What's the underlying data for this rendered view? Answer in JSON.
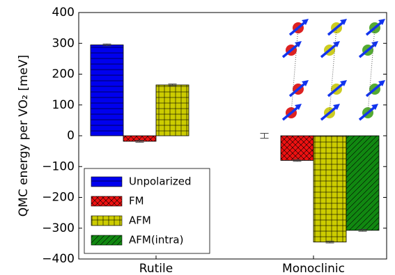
{
  "chart_data": {
    "type": "bar",
    "ylabel": "QMC energy per VO₂ [meV]",
    "categories": [
      "Rutile",
      "Monoclinic"
    ],
    "series": [
      {
        "name": "Unpolarized",
        "color": "#0000ee",
        "hatch": "-",
        "values": [
          295,
          0
        ],
        "errors": [
          3,
          8
        ]
      },
      {
        "name": "FM",
        "color": "#ee1111",
        "hatch": "x",
        "values": [
          -18,
          -80
        ],
        "errors": [
          3,
          3
        ]
      },
      {
        "name": "AFM",
        "color": "#cccc00",
        "hatch": "+",
        "values": [
          165,
          -345
        ],
        "errors": [
          3,
          3
        ]
      },
      {
        "name": "AFM(intra)",
        "color": "#118811",
        "hatch": "/",
        "values": [
          null,
          -307
        ],
        "errors": [
          null,
          3
        ]
      }
    ],
    "ylim": [
      -400,
      400
    ],
    "yticks": [
      {
        "value": -400,
        "label": "−400"
      },
      {
        "value": -300,
        "label": "−300"
      },
      {
        "value": -200,
        "label": "−200"
      },
      {
        "value": -100,
        "label": "−100"
      },
      0,
      100,
      200,
      300,
      400
    ],
    "legend": "lower left"
  }
}
